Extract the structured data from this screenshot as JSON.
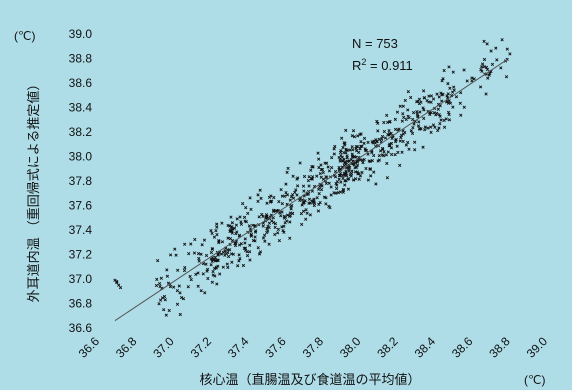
{
  "chart_data": {
    "type": "scatter",
    "title": "",
    "xlabel": "核心温（直腸温及び食道温の平均値）",
    "ylabel": "外耳道内温 （重回帰式による推定値）",
    "x_unit": "(℃)",
    "y_unit": "(℃)",
    "xlim": [
      36.6,
      39.0
    ],
    "ylim": [
      36.6,
      39.0
    ],
    "x_ticks": [
      "36.6",
      "36.8",
      "37.0",
      "37.2",
      "37.4",
      "37.6",
      "37.8",
      "38.0",
      "38.2",
      "38.4",
      "38.6",
      "38.8",
      "39.0"
    ],
    "y_ticks": [
      "36.6",
      "36.8",
      "37.0",
      "37.2",
      "37.4",
      "37.6",
      "37.8",
      "38.0",
      "38.2",
      "38.4",
      "38.6",
      "38.8",
      "39.0"
    ],
    "annotation_n": "N = 753",
    "annotation_r2_prefix": "R",
    "annotation_r2_sup": "2",
    "annotation_r2_value": " = 0.911",
    "regression_line": {
      "x": [
        36.68,
        38.78
      ],
      "y": [
        36.66,
        38.79
      ]
    },
    "point_count": 753,
    "point_spread": 0.12,
    "outlier_points": [
      [
        36.68,
        36.99
      ],
      [
        36.69,
        36.98
      ],
      [
        36.7,
        36.95
      ],
      [
        36.71,
        36.93
      ],
      [
        36.69,
        36.97
      ]
    ],
    "grid": false,
    "legend": false,
    "colors": {
      "background": "#aedde8",
      "points": "#111111",
      "line": "#555555"
    }
  }
}
